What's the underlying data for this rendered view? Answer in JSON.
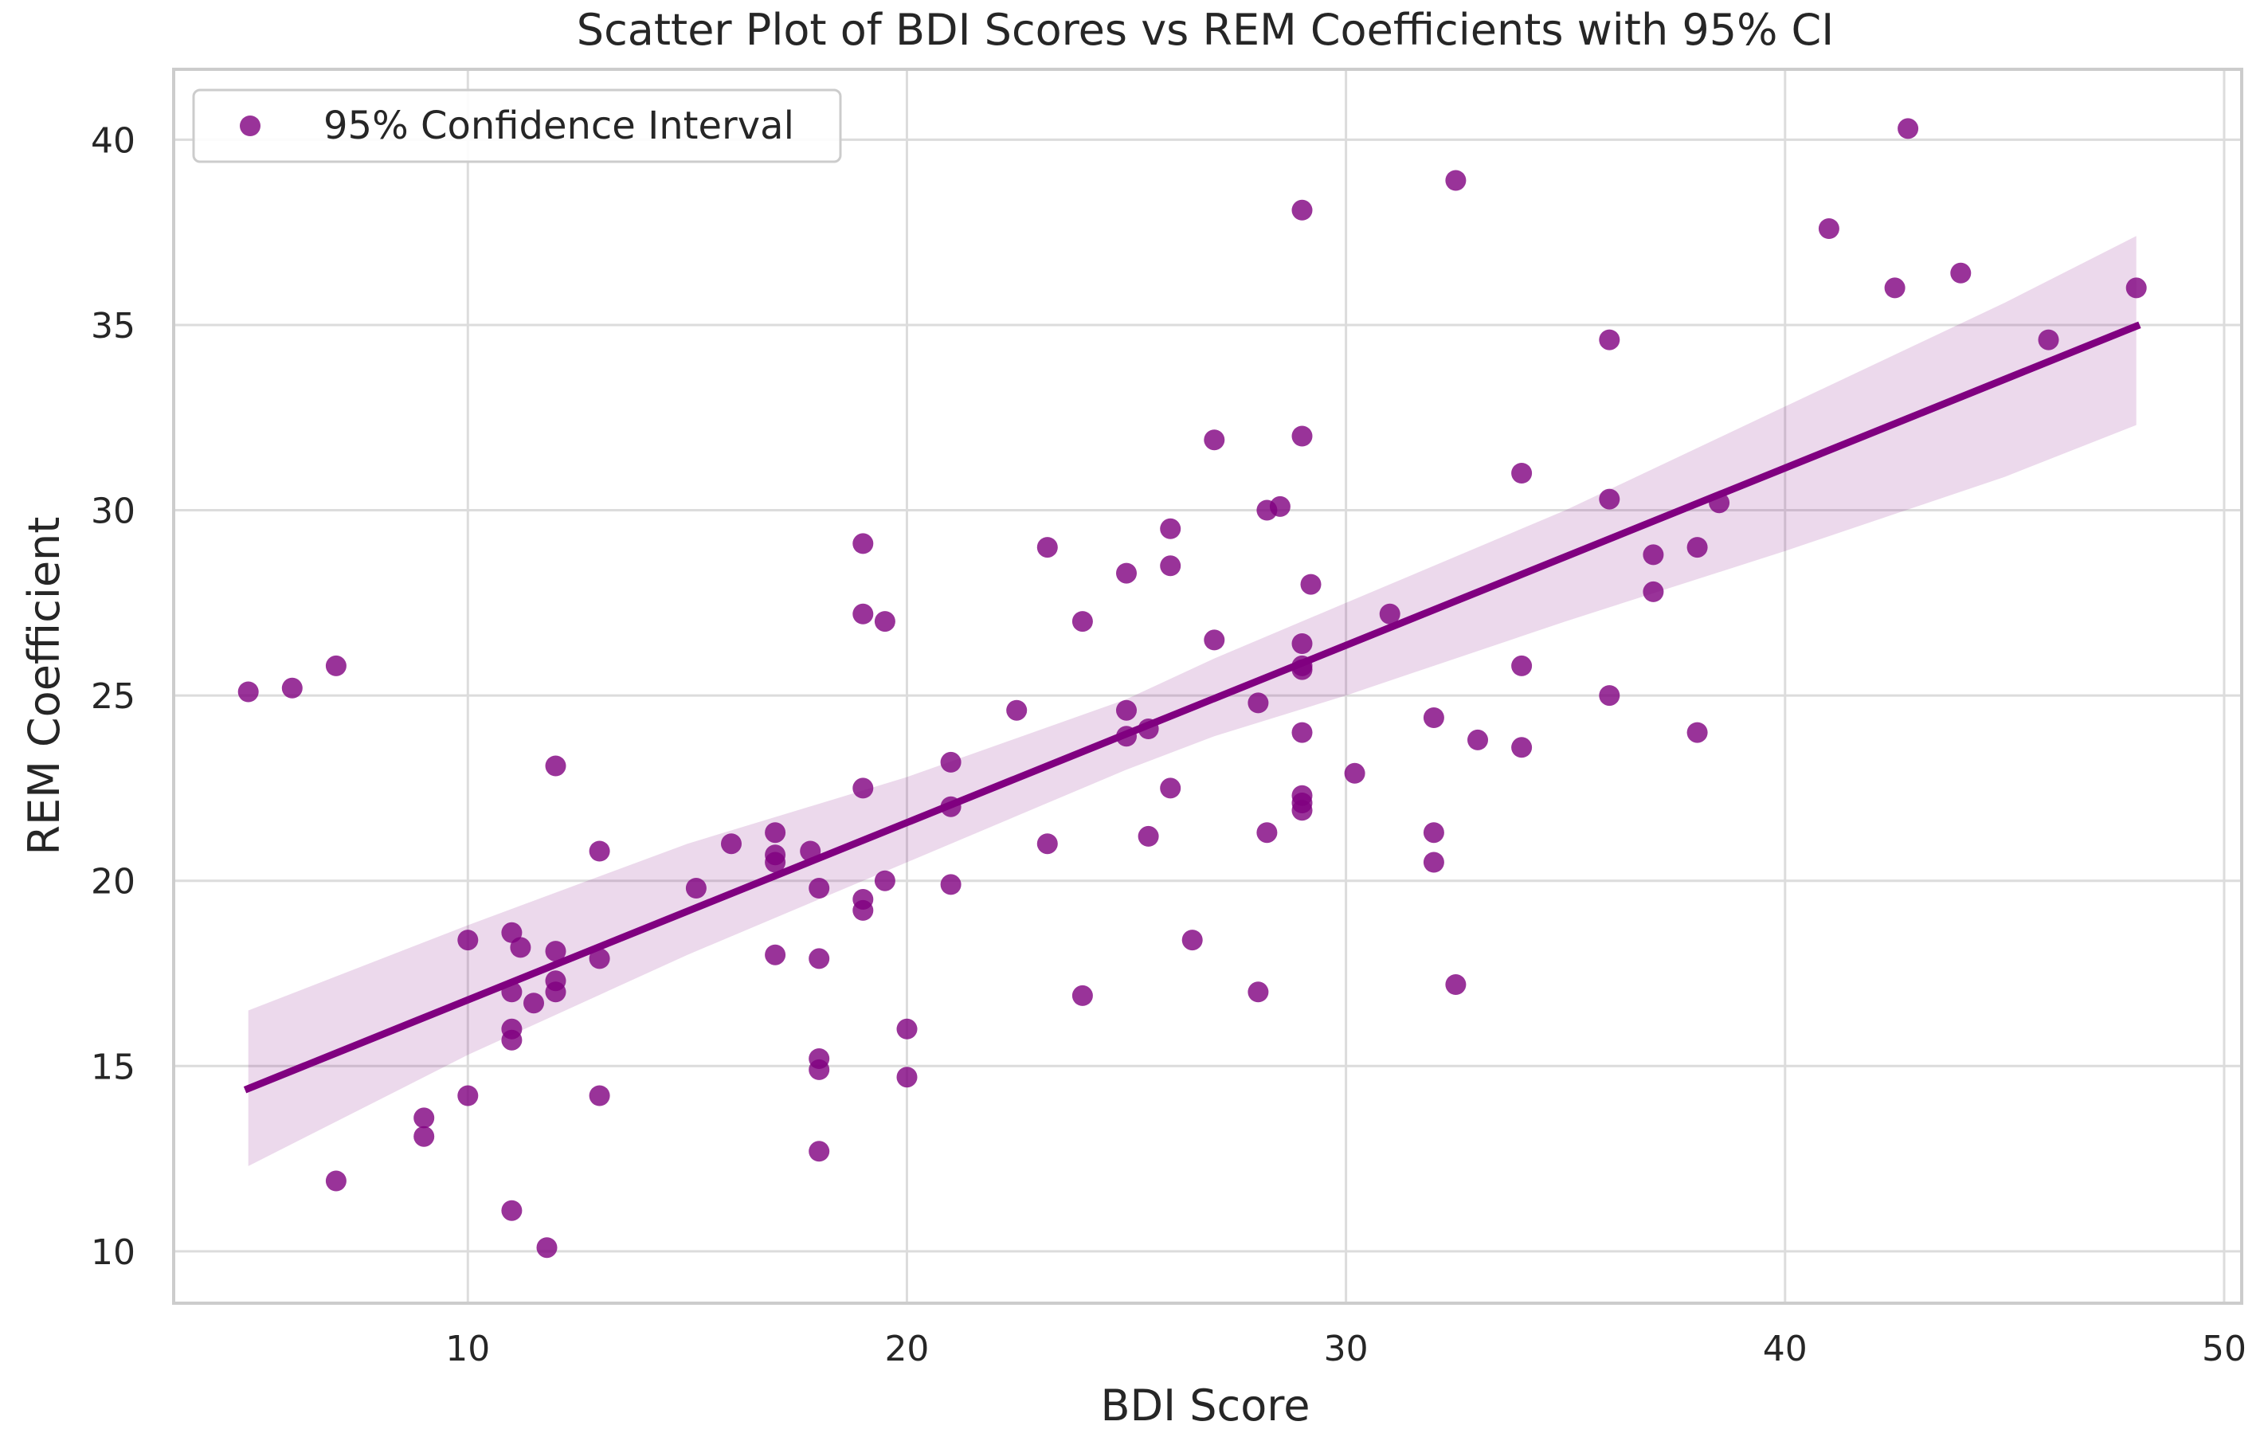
{
  "chart_data": {
    "type": "scatter",
    "title": "Scatter Plot of BDI Scores vs REM Coefficients with 95% CI",
    "xlabel": "BDI Score",
    "ylabel": "REM Coefficient",
    "xlim": [
      3.3,
      50.4
    ],
    "ylim": [
      8.6,
      41.9
    ],
    "xticks": [
      10,
      20,
      30,
      40,
      50
    ],
    "yticks": [
      10,
      15,
      20,
      25,
      30,
      35,
      40
    ],
    "grid": true,
    "legend": {
      "label": "95% Confidence Interval",
      "position": "top-left"
    },
    "colors": {
      "points": "#800080",
      "line": "#800080",
      "band": "#800080"
    },
    "points": [
      [
        5,
        25.1
      ],
      [
        6,
        25.2
      ],
      [
        7,
        25.8
      ],
      [
        7,
        11.9
      ],
      [
        9,
        13.6
      ],
      [
        9,
        13.1
      ],
      [
        10,
        18.4
      ],
      [
        10,
        14.2
      ],
      [
        11,
        18.6
      ],
      [
        11,
        17.0
      ],
      [
        11,
        16.0
      ],
      [
        11,
        15.7
      ],
      [
        11,
        11.1
      ],
      [
        11.2,
        18.2
      ],
      [
        11.5,
        16.7
      ],
      [
        11.8,
        10.1
      ],
      [
        12,
        23.1
      ],
      [
        12,
        18.1
      ],
      [
        12,
        17.3
      ],
      [
        12,
        17.0
      ],
      [
        13,
        20.8
      ],
      [
        13,
        17.9
      ],
      [
        13,
        14.2
      ],
      [
        15.2,
        19.8
      ],
      [
        16,
        21.0
      ],
      [
        17,
        21.3
      ],
      [
        17,
        20.7
      ],
      [
        17,
        20.5
      ],
      [
        17,
        18.0
      ],
      [
        17.8,
        20.8
      ],
      [
        18,
        19.8
      ],
      [
        18,
        17.9
      ],
      [
        18,
        15.2
      ],
      [
        18,
        14.9
      ],
      [
        18,
        12.7
      ],
      [
        19,
        29.1
      ],
      [
        19,
        27.2
      ],
      [
        19,
        22.5
      ],
      [
        19,
        19.5
      ],
      [
        19,
        19.2
      ],
      [
        19.5,
        27.0
      ],
      [
        19.5,
        20.0
      ],
      [
        20,
        16.0
      ],
      [
        20,
        14.7
      ],
      [
        21,
        23.2
      ],
      [
        21,
        22.0
      ],
      [
        21,
        19.9
      ],
      [
        22.5,
        24.6
      ],
      [
        23.2,
        29.0
      ],
      [
        23.2,
        21.0
      ],
      [
        24,
        27.0
      ],
      [
        24,
        16.9
      ],
      [
        25,
        28.3
      ],
      [
        25,
        24.6
      ],
      [
        25,
        23.9
      ],
      [
        25.5,
        24.1
      ],
      [
        25.5,
        21.2
      ],
      [
        26,
        29.5
      ],
      [
        26,
        28.5
      ],
      [
        26,
        22.5
      ],
      [
        26.5,
        18.4
      ],
      [
        27,
        31.9
      ],
      [
        27,
        26.5
      ],
      [
        28,
        24.8
      ],
      [
        28,
        17.0
      ],
      [
        28.2,
        30.0
      ],
      [
        28.2,
        21.3
      ],
      [
        28.5,
        30.1
      ],
      [
        29,
        38.1
      ],
      [
        29,
        32.0
      ],
      [
        29,
        26.4
      ],
      [
        29,
        25.8
      ],
      [
        29,
        25.7
      ],
      [
        29,
        24.0
      ],
      [
        29,
        22.3
      ],
      [
        29,
        22.1
      ],
      [
        29,
        21.9
      ],
      [
        29.2,
        28.0
      ],
      [
        30.2,
        22.9
      ],
      [
        31,
        27.2
      ],
      [
        32,
        24.4
      ],
      [
        32,
        21.3
      ],
      [
        32,
        20.5
      ],
      [
        32.5,
        38.9
      ],
      [
        32.5,
        17.2
      ],
      [
        33,
        23.8
      ],
      [
        34,
        31.0
      ],
      [
        34,
        25.8
      ],
      [
        34,
        23.6
      ],
      [
        36,
        34.6
      ],
      [
        36,
        30.3
      ],
      [
        36,
        25.0
      ],
      [
        37,
        28.8
      ],
      [
        37,
        27.8
      ],
      [
        38,
        29.0
      ],
      [
        38,
        24.0
      ],
      [
        38.5,
        30.2
      ],
      [
        41,
        37.6
      ],
      [
        42.5,
        36.0
      ],
      [
        42.8,
        40.3
      ],
      [
        44,
        36.4
      ],
      [
        46,
        34.6
      ],
      [
        48,
        36.0
      ]
    ],
    "regression": {
      "x_start": 5,
      "x_end": 48,
      "slope": 0.4785,
      "intercept": 12.0
    },
    "ci_band": {
      "x": [
        5,
        10,
        15,
        20,
        25,
        27,
        30,
        35,
        40,
        45,
        48
      ],
      "lower": [
        12.3,
        15.3,
        18.0,
        20.5,
        23.0,
        23.9,
        25.0,
        27.0,
        28.9,
        30.9,
        32.3
      ],
      "upper": [
        16.5,
        18.8,
        21.0,
        22.8,
        24.9,
        26.0,
        27.5,
        30.0,
        32.8,
        35.6,
        37.4
      ]
    }
  }
}
